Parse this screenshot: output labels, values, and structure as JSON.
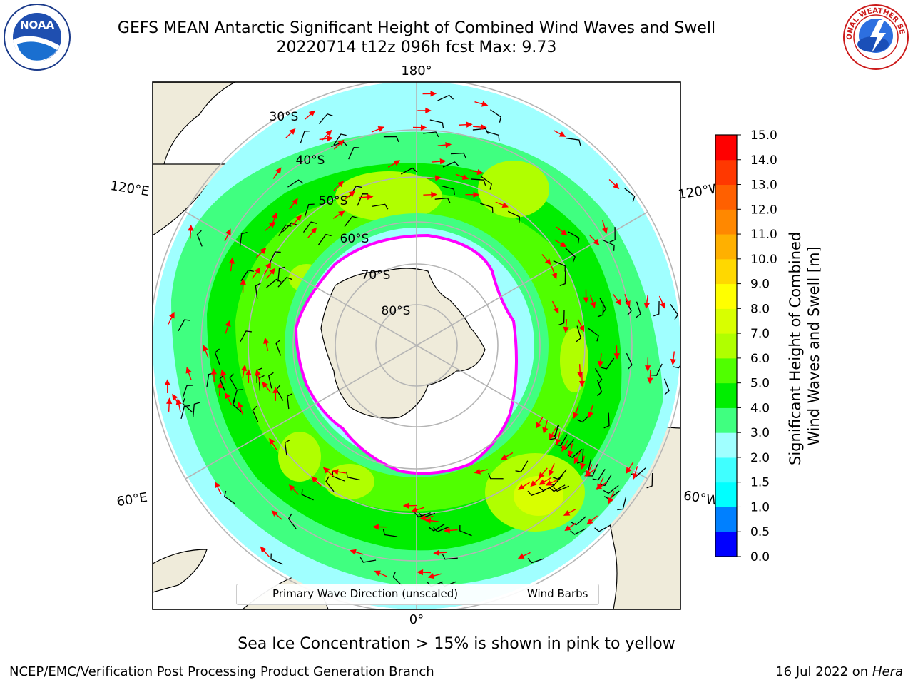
{
  "header": {
    "title_line1": "GEFS MEAN Antarctic Significant Height of Combined Wind Waves and Swell",
    "title_line2": "20220714 t12z 096h fcst   Max: 9.73",
    "left_logo_text": "NOAA",
    "right_logo_text": "NATIONAL WEATHER SERVICE"
  },
  "map": {
    "projection": "south-polar-stereographic",
    "longitude_labels": {
      "top": "180°",
      "bottom": "0°",
      "left_upper": "120°E",
      "left_lower": "60°E",
      "right_upper": "120°W",
      "right_lower": "60°W"
    },
    "latitude_labels": [
      "30°S",
      "40°S",
      "50°S",
      "60°S",
      "70°S",
      "80°S"
    ],
    "colors": {
      "land": "#efebda",
      "sea_ice": "#ffffff",
      "ice_edge": "#ff00ff",
      "graticule": "#b5b5b5",
      "wave_arrow": "#ff0000",
      "wind_barb": "#000000"
    },
    "legend": {
      "wave": "Primary Wave Direction (unscaled)",
      "wind": "Wind Barbs"
    }
  },
  "colorbar": {
    "label_line1": "Significant Height of Combined",
    "label_line2": "Wind Waves and Swell [m]",
    "ticks": [
      "0.0",
      "0.5",
      "1.0",
      "1.5",
      "2.0",
      "3.0",
      "4.0",
      "5.0",
      "6.0",
      "7.0",
      "8.0",
      "9.0",
      "10.0",
      "11.0",
      "12.0",
      "13.0",
      "14.0",
      "15.0"
    ],
    "colors": [
      "#0000ff",
      "#0080ff",
      "#00ffff",
      "#40ffff",
      "#a0ffff",
      "#40ff80",
      "#00ee00",
      "#50ff00",
      "#b0ff00",
      "#d8ff00",
      "#ffff00",
      "#ffd800",
      "#ffb000",
      "#ff8800",
      "#ff6000",
      "#ff3800",
      "#ff0000"
    ]
  },
  "footer": {
    "sea_ice_note": "Sea Ice Concentration > 15% is shown in pink to yellow",
    "left": "NCEP/EMC/Verification Post Processing Product Generation Branch",
    "right_date": "16 Jul 2022 on ",
    "right_host": "Hera"
  },
  "chart_data": {
    "type": "heatmap",
    "variable": "Significant Height of Combined Wind Waves and Swell [m]",
    "max_value": 9.73,
    "value_range": [
      0,
      15
    ],
    "color_levels": [
      0.0,
      0.5,
      1.0,
      1.5,
      2.0,
      3.0,
      4.0,
      5.0,
      6.0,
      7.0,
      8.0,
      9.0,
      10.0,
      11.0,
      12.0,
      13.0,
      14.0,
      15.0
    ]
  }
}
